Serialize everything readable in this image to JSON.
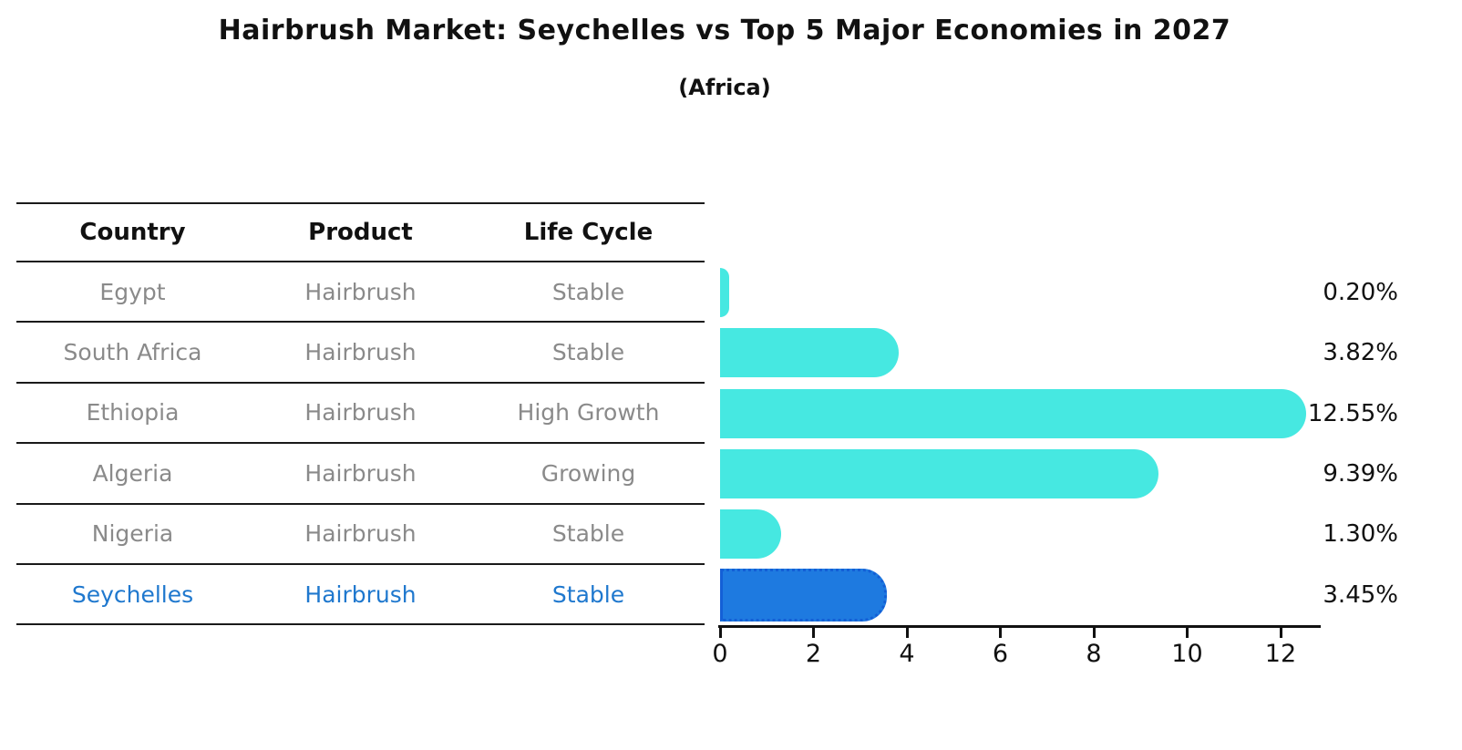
{
  "header": {
    "title": "Hairbrush Market: Seychelles vs Top 5 Major Economies in 2027",
    "subtitle": "(Africa)"
  },
  "table": {
    "columns": [
      "Country",
      "Product",
      "Life Cycle"
    ],
    "rows": [
      {
        "country": "Egypt",
        "product": "Hairbrush",
        "life_cycle": "Stable",
        "highlighted": false
      },
      {
        "country": "South Africa",
        "product": "Hairbrush",
        "life_cycle": "Stable",
        "highlighted": false
      },
      {
        "country": "Ethiopia",
        "product": "Hairbrush",
        "life_cycle": "High Growth",
        "highlighted": false
      },
      {
        "country": "Algeria",
        "product": "Hairbrush",
        "life_cycle": "Growing",
        "highlighted": false
      },
      {
        "country": "Nigeria",
        "product": "Hairbrush",
        "life_cycle": "Stable",
        "highlighted": false
      },
      {
        "country": "Seychelles",
        "product": "Hairbrush",
        "life_cycle": "Stable",
        "highlighted": true
      }
    ]
  },
  "chart_data": {
    "type": "bar",
    "orientation": "horizontal",
    "title": "Hairbrush Market: Seychelles vs Top 5 Major Economies in 2027",
    "subtitle": "(Africa)",
    "categories": [
      "Egypt",
      "South Africa",
      "Ethiopia",
      "Algeria",
      "Nigeria",
      "Seychelles"
    ],
    "values": [
      0.2,
      3.82,
      12.55,
      9.39,
      1.3,
      3.45
    ],
    "value_labels": [
      "0.20%",
      "3.82%",
      "12.55%",
      "9.39%",
      "1.30%",
      "3.45%"
    ],
    "unit": "percent",
    "xticks": [
      0,
      2,
      4,
      6,
      8,
      10,
      12
    ],
    "xlim": [
      0,
      12.82
    ],
    "grid": false,
    "legend": false,
    "highlight_index": 5,
    "xlabel": "",
    "ylabel": ""
  },
  "colors": {
    "bar": "#46e8e1",
    "highlight_bar": "#1e7ae0",
    "highlight_border": "#135fd6",
    "highlight_text": "#1f78ce",
    "muted_text": "#8a8a8a",
    "text": "#111111"
  }
}
